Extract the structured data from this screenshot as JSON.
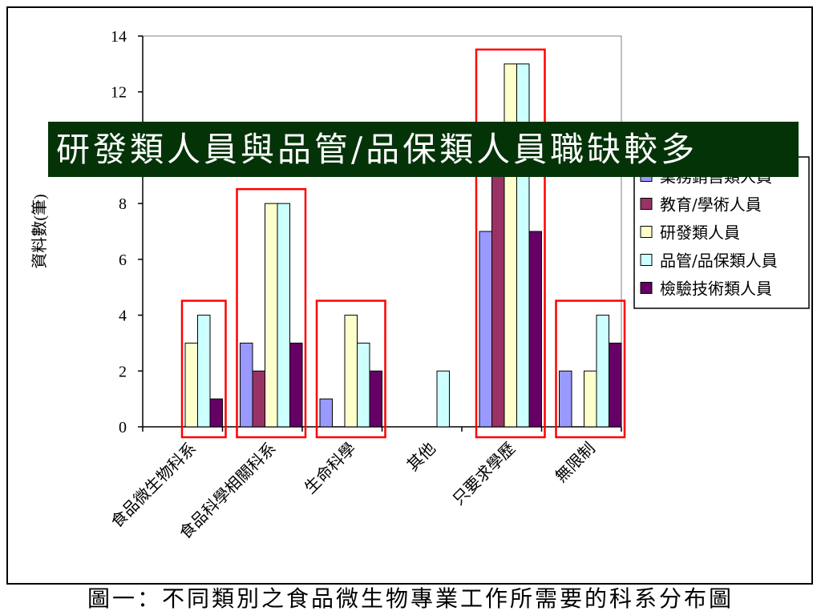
{
  "chart_data": {
    "type": "bar",
    "categories": [
      "食品微生物科系",
      "食品科學相關科系",
      "生命科學",
      "其他",
      "只要求學歷",
      "無限制"
    ],
    "series": [
      {
        "name": "業務銷售類人員",
        "color": "#9999ff",
        "values": [
          0,
          3,
          1,
          0,
          7,
          2
        ]
      },
      {
        "name": "教育/學術人員",
        "color": "#993366",
        "values": [
          0,
          2,
          0,
          0,
          9,
          0
        ]
      },
      {
        "name": "研發類人員",
        "color": "#ffffcc",
        "values": [
          3,
          8,
          4,
          0,
          13,
          2
        ]
      },
      {
        "name": "品管/品保類人員",
        "color": "#ccffff",
        "values": [
          4,
          8,
          3,
          2,
          13,
          4
        ]
      },
      {
        "name": "檢驗技術類人員",
        "color": "#660066",
        "values": [
          1,
          3,
          2,
          0,
          7,
          3
        ]
      }
    ],
    "ylabel": "資料數(筆)",
    "ylim": [
      0,
      14
    ],
    "yticks": [
      0,
      2,
      4,
      6,
      8,
      10,
      12,
      14
    ],
    "highlighted_categories": [
      "食品微生物科系",
      "食品科學相關科系",
      "生命科學",
      "只要求學歷",
      "無限制"
    ],
    "highlight_color": "#ff0000"
  },
  "banner_text": "研發類人員與品管/品保類人員職缺較多",
  "caption": "圖一：不同類別之食品微生物專業工作所需要的科系分布圖"
}
